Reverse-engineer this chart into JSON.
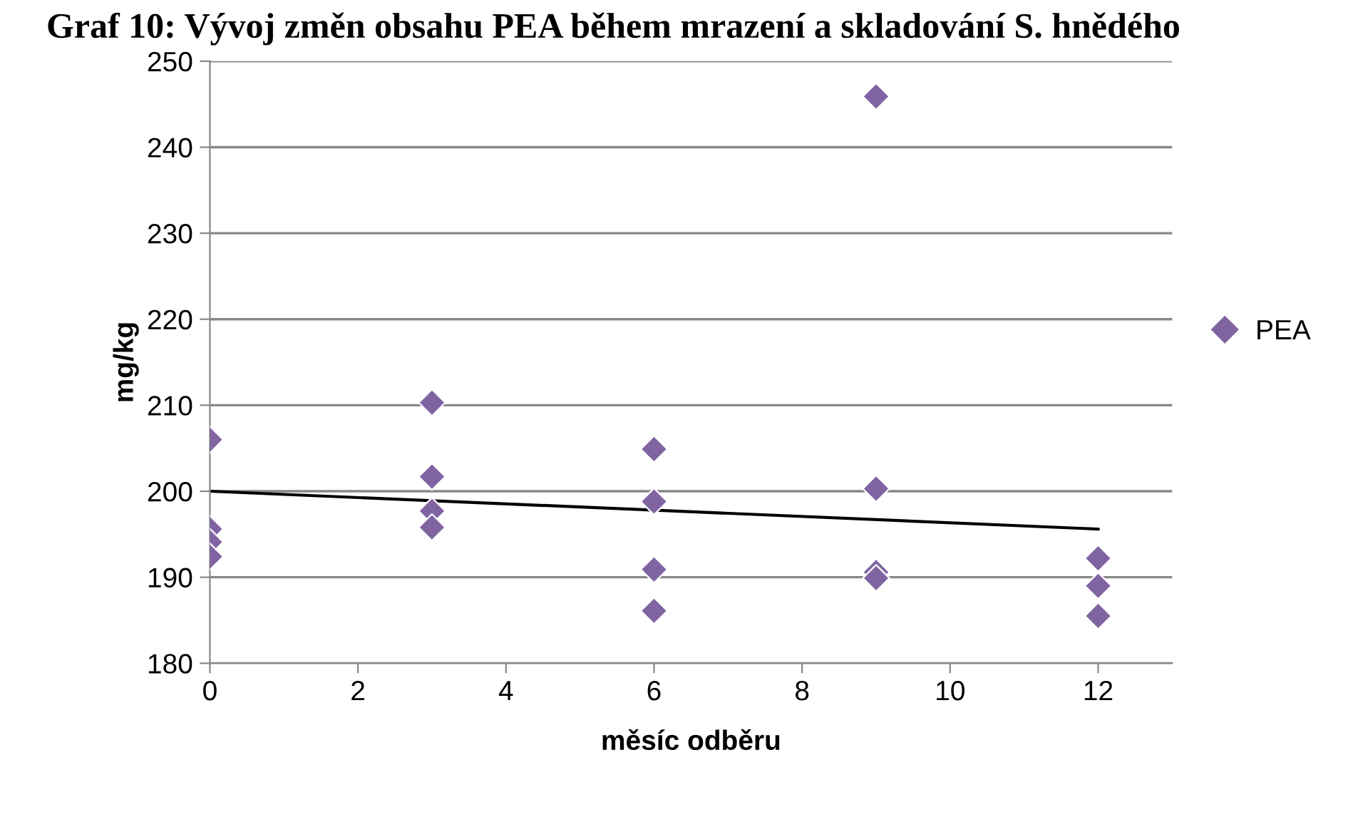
{
  "chart_data": {
    "type": "scatter",
    "title": "Graf 10: Vývoj změn obsahu PEA během mrazení a skladování S. hnědého",
    "xlabel": "měsíc odběru",
    "ylabel": "mg/kg",
    "series": [
      {
        "name": "PEA",
        "color": "#8064a2",
        "marker": "diamond",
        "x": [
          0,
          0,
          0,
          0,
          3,
          3,
          3,
          3,
          6,
          6,
          6,
          6,
          9,
          9,
          9,
          9,
          12,
          12,
          12
        ],
        "values": [
          206,
          195.6,
          194.1,
          192.4,
          210.3,
          201.7,
          197.7,
          195.8,
          204.9,
          198.8,
          190.9,
          186.1,
          245.9,
          200.3,
          190.6,
          189.9,
          192.2,
          189.0,
          185.5
        ]
      },
      {
        "type": "line",
        "color": "#000000",
        "marker": "none",
        "line_style": "solid",
        "x": [
          0,
          12
        ],
        "values": [
          200,
          195.6
        ]
      }
    ],
    "xlim": [
      0,
      13
    ],
    "xticks": [
      0,
      2,
      4,
      6,
      8,
      10,
      12
    ],
    "ylim": [
      180,
      250
    ],
    "yticks": [
      180,
      190,
      200,
      210,
      220,
      230,
      240,
      250
    ],
    "grid": "y",
    "legend": "right"
  }
}
